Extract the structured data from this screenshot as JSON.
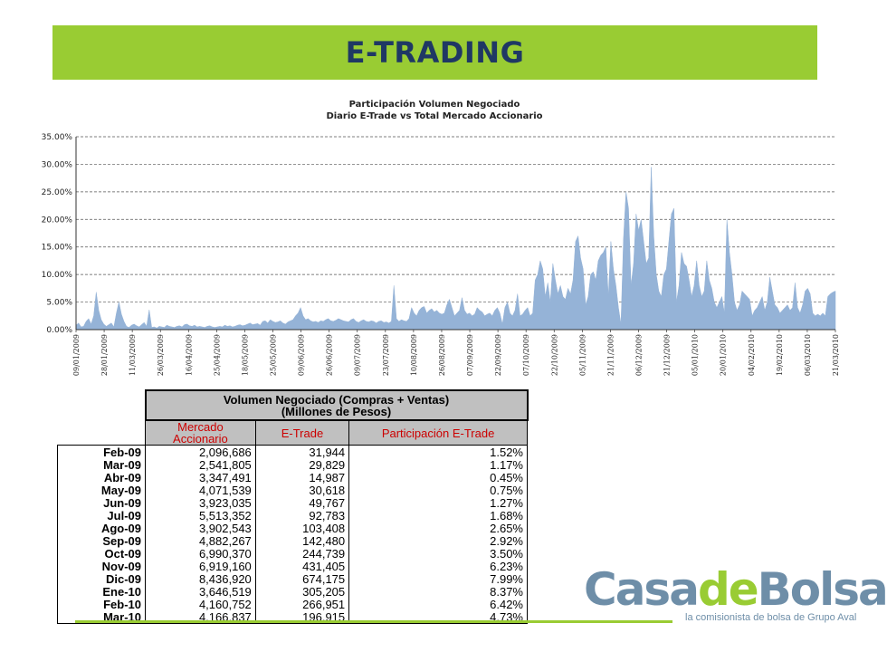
{
  "header": {
    "title": "E-TRADING"
  },
  "chart_data": {
    "type": "area",
    "title": "Participación Volumen Negociado",
    "subtitle": "Diario E-Trade vs Total Mercado Accionario",
    "ylim": [
      0,
      35
    ],
    "y_ticks": [
      "0.00%",
      "5.00%",
      "10.00%",
      "15.00%",
      "20.00%",
      "25.00%",
      "30.00%",
      "35.00%"
    ],
    "x_tick_labels": [
      "09/01/2009",
      "28/01/2009",
      "11/03/2009",
      "26/03/2009",
      "16/04/2009",
      "25/04/2009",
      "18/05/2009",
      "25/05/2009",
      "09/06/2009",
      "26/06/2009",
      "09/07/2009",
      "23/07/2009",
      "10/08/2009",
      "26/08/2009",
      "07/09/2009",
      "22/09/2009",
      "07/10/2009",
      "22/10/2009",
      "05/11/2009",
      "21/11/2009",
      "06/12/2009",
      "21/12/2009",
      "05/01/2010",
      "20/01/2010",
      "04/02/2010",
      "19/02/2010",
      "06/03/2010",
      "21/03/2010"
    ],
    "grid": "horizontal-dashed",
    "fill_color": "#95b3d7",
    "series": [
      {
        "values": [
          0.8,
          1.2,
          0.5,
          0.6,
          1.5,
          2.0,
          1.0,
          2.5,
          6.8,
          3.5,
          1.8,
          1.0,
          0.6,
          0.9,
          1.2,
          0.5,
          3.0,
          5.0,
          2.8,
          1.5,
          0.6,
          0.4,
          0.8,
          1.0,
          0.7,
          0.5,
          0.9,
          1.3,
          0.6,
          3.6,
          0.4,
          0.5,
          0.3,
          0.6,
          0.5,
          0.4,
          0.8,
          0.6,
          0.5,
          0.4,
          0.6,
          0.7,
          0.5,
          0.9,
          1.0,
          0.7,
          0.6,
          0.8,
          0.5,
          0.6,
          0.5,
          0.4,
          0.6,
          0.7,
          0.5,
          0.4,
          0.5,
          0.6,
          0.5,
          0.8,
          0.6,
          0.7,
          0.5,
          0.6,
          0.8,
          0.9,
          0.7,
          0.8,
          1.0,
          1.2,
          0.9,
          1.0,
          1.1,
          0.8,
          1.5,
          1.6,
          1.2,
          1.8,
          1.5,
          1.3,
          1.4,
          1.6,
          1.2,
          1.0,
          1.4,
          1.6,
          1.8,
          2.5,
          3.0,
          4.0,
          2.5,
          1.8,
          2.0,
          1.6,
          1.4,
          1.5,
          1.3,
          1.6,
          1.5,
          1.8,
          2.0,
          1.6,
          1.5,
          1.7,
          2.0,
          1.8,
          1.6,
          1.5,
          1.4,
          1.8,
          2.0,
          1.5,
          1.3,
          1.6,
          1.8,
          1.5,
          1.4,
          1.6,
          1.5,
          1.2,
          1.5,
          1.6,
          1.3,
          1.4,
          1.2,
          1.5,
          8.0,
          2.0,
          1.5,
          1.8,
          1.6,
          1.5,
          2.0,
          4.0,
          3.0,
          2.5,
          3.5,
          4.0,
          4.2,
          3.0,
          3.5,
          3.8,
          3.2,
          3.5,
          3.0,
          2.8,
          3.0,
          4.5,
          5.5,
          4.0,
          2.5,
          3.0,
          3.5,
          5.8,
          3.5,
          2.8,
          3.0,
          2.5,
          2.8,
          4.0,
          3.5,
          3.2,
          2.5,
          2.8,
          3.0,
          2.5,
          3.5,
          4.0,
          3.0,
          1.0,
          4.0,
          5.0,
          3.0,
          2.5,
          3.5,
          6.5,
          2.5,
          2.8,
          3.5,
          4.0,
          2.5,
          3.0,
          9.0,
          10.0,
          12.5,
          11.0,
          6.0,
          8.5,
          5.0,
          12.0,
          9.0,
          6.5,
          8.0,
          6.0,
          5.5,
          7.5,
          6.5,
          9.0,
          16.0,
          17.0,
          13.0,
          11.0,
          4.5,
          6.0,
          10.0,
          10.5,
          9.0,
          12.5,
          13.5,
          14.0,
          15.0,
          6.0,
          16.0,
          11.0,
          8.0,
          4.0,
          1.0,
          16.5,
          25.0,
          22.0,
          8.0,
          12.0,
          21.0,
          18.0,
          20.0,
          16.0,
          12.0,
          13.0,
          29.5,
          17.0,
          10.0,
          7.0,
          6.0,
          10.0,
          11.0,
          16.0,
          21.0,
          22.0,
          5.0,
          8.0,
          14.0,
          12.0,
          11.5,
          9.0,
          6.0,
          8.0,
          12.5,
          8.0,
          6.0,
          7.0,
          12.5,
          9.0,
          7.5,
          5.0,
          4.0,
          5.0,
          6.0,
          3.0,
          20.0,
          14.0,
          10.0,
          5.0,
          3.5,
          4.5,
          7.0,
          6.5,
          6.0,
          5.5,
          2.5,
          3.5,
          4.0,
          5.0,
          6.0,
          3.5,
          5.0,
          9.5,
          7.0,
          4.5,
          4.0,
          3.0,
          3.5,
          4.0,
          4.5,
          3.5,
          4.0,
          8.5,
          4.0,
          3.0,
          4.5,
          7.0,
          7.5,
          6.5,
          3.0,
          2.5,
          2.8,
          2.5,
          3.0,
          2.5,
          6.0,
          6.5,
          6.8,
          7.0
        ]
      }
    ]
  },
  "table": {
    "header_title_line1": "Volumen Negociado (Compras + Ventas)",
    "header_title_line2": "(Millones de Pesos)",
    "col_market": "Mercado Accionario",
    "col_etrade": "E-Trade",
    "col_share": "Participación E-Trade",
    "rows": [
      {
        "month": "Feb-09",
        "market": "2,096,686",
        "etrade": "31,944",
        "share": "1.52%"
      },
      {
        "month": "Mar-09",
        "market": "2,541,805",
        "etrade": "29,829",
        "share": "1.17%"
      },
      {
        "month": "Abr-09",
        "market": "3,347,491",
        "etrade": "14,987",
        "share": "0.45%"
      },
      {
        "month": "May-09",
        "market": "4,071,539",
        "etrade": "30,618",
        "share": "0.75%"
      },
      {
        "month": "Jun-09",
        "market": "3,923,035",
        "etrade": "49,767",
        "share": "1.27%"
      },
      {
        "month": "Jul-09",
        "market": "5,513,352",
        "etrade": "92,783",
        "share": "1.68%"
      },
      {
        "month": "Ago-09",
        "market": "3,902,543",
        "etrade": "103,408",
        "share": "2.65%"
      },
      {
        "month": "Sep-09",
        "market": "4,882,267",
        "etrade": "142,480",
        "share": "2.92%"
      },
      {
        "month": "Oct-09",
        "market": "6,990,370",
        "etrade": "244,739",
        "share": "3.50%"
      },
      {
        "month": "Nov-09",
        "market": "6,919,160",
        "etrade": "431,405",
        "share": "6.23%"
      },
      {
        "month": "Dic-09",
        "market": "8,436,920",
        "etrade": "674,175",
        "share": "7.99%"
      },
      {
        "month": "Ene-10",
        "market": "3,646,519",
        "etrade": "305,205",
        "share": "8.37%"
      },
      {
        "month": "Feb-10",
        "market": "4,160,752",
        "etrade": "266,951",
        "share": "6.42%"
      },
      {
        "month": "Mar-10",
        "market": "4,166,837",
        "etrade": "196,915",
        "share": "4.73%"
      }
    ]
  },
  "logo": {
    "part1": "Casa",
    "part2": "de",
    "part3": "Bolsa",
    "tagline": "la comisionista de bolsa de Grupo Aval"
  },
  "colors": {
    "banner": "#99cc33",
    "title_text": "#1f3864",
    "area_fill": "#95b3d7",
    "logo_blue": "#6e8ea8",
    "logo_green": "#99cc33"
  }
}
